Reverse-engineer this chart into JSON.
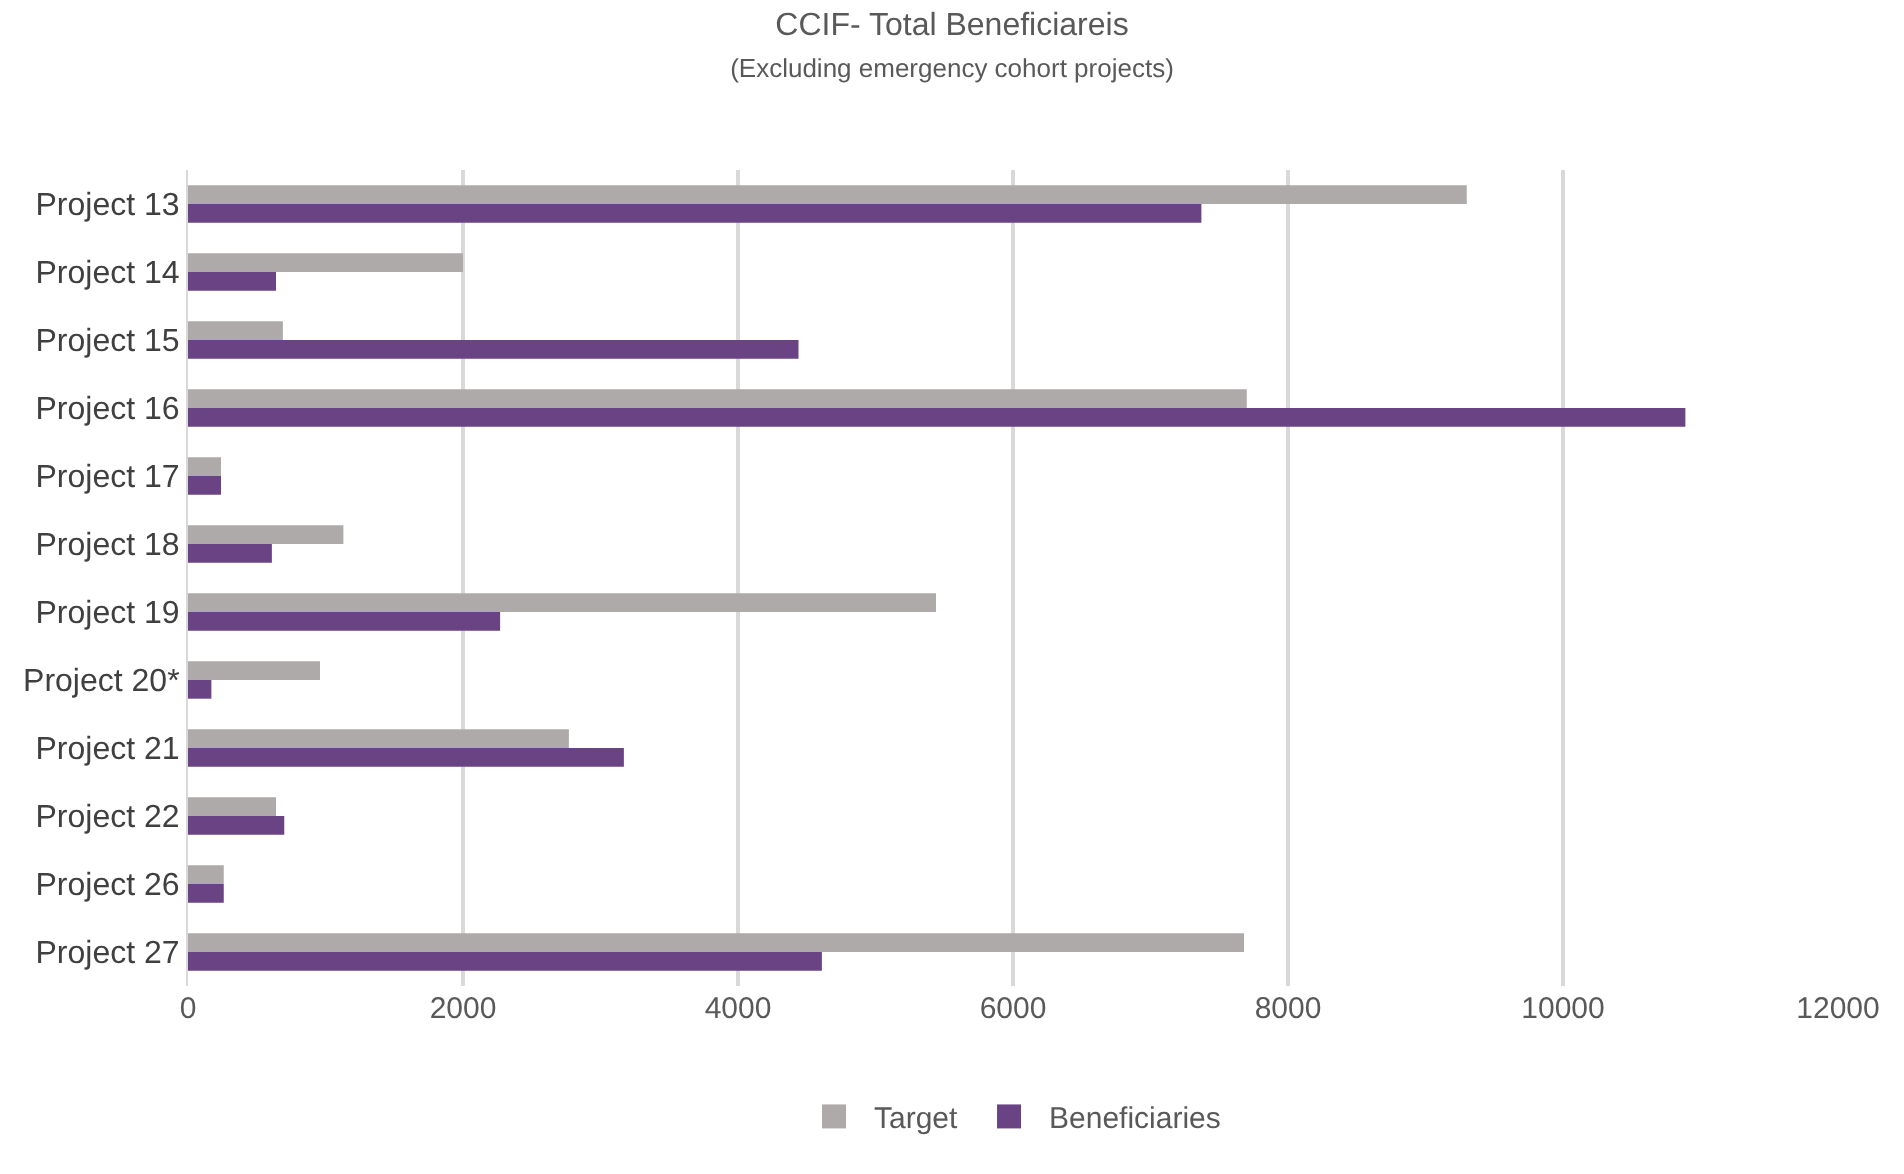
{
  "chart_data": {
    "type": "bar",
    "orientation": "horizontal",
    "title": "CCIF- Total Beneficiareis",
    "subtitle": "(Excluding emergency cohort projects)",
    "categories": [
      "Project 13",
      "Project 14",
      "Project 15",
      "Project 16",
      "Project 17",
      "Project 18",
      "Project 19",
      "Project 20*",
      "Project 21",
      "Project 22",
      "Project 26",
      "Project 27"
    ],
    "series": [
      {
        "name": "Target",
        "color": "#aeaaaa",
        "values": [
          9300,
          2000,
          690,
          7700,
          240,
          1130,
          5440,
          960,
          2770,
          640,
          260,
          7680
        ]
      },
      {
        "name": "Beneficiaries",
        "color": "#6a4385",
        "values": [
          7370,
          640,
          4440,
          10890,
          240,
          610,
          2270,
          170,
          3170,
          700,
          260,
          4610
        ]
      }
    ],
    "xlim": [
      0,
      12000
    ],
    "xticks": [
      0,
      2000,
      4000,
      6000,
      8000,
      10000,
      12000
    ],
    "grid": "x",
    "legend": "bottom"
  }
}
